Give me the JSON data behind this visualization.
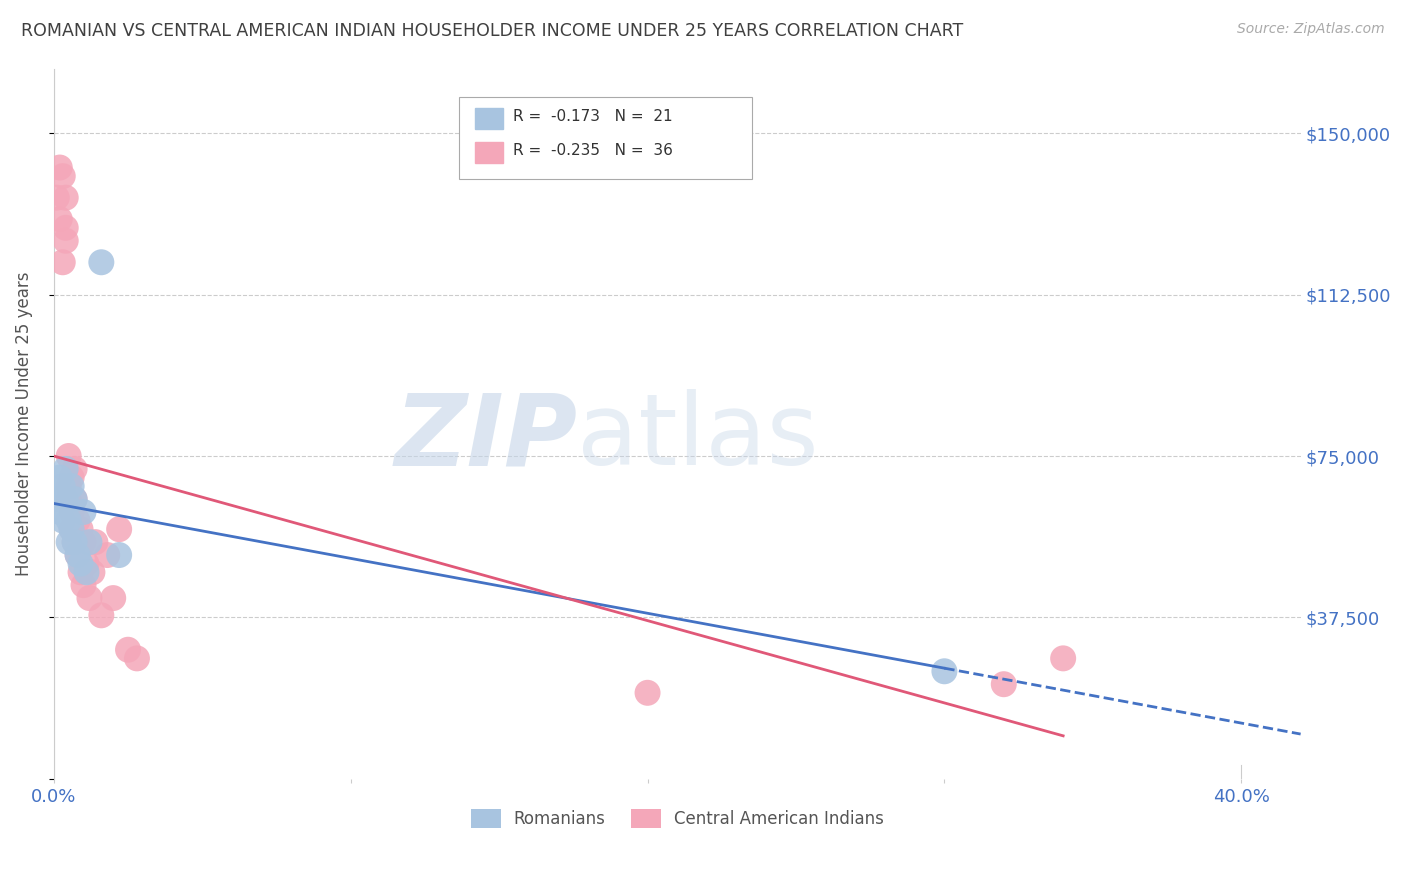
{
  "title": "ROMANIAN VS CENTRAL AMERICAN INDIAN HOUSEHOLDER INCOME UNDER 25 YEARS CORRELATION CHART",
  "source": "Source: ZipAtlas.com",
  "ylabel": "Householder Income Under 25 years",
  "xlim": [
    0.0,
    0.42
  ],
  "ylim": [
    0,
    165000
  ],
  "legend_r1": "R =  -0.173   N =  21",
  "legend_r2": "R =  -0.235   N =  36",
  "romanian_color": "#a8c4e0",
  "central_american_color": "#f4a7b9",
  "regression_romanian_color": "#4472c4",
  "regression_central_color": "#e05878",
  "background_color": "#ffffff",
  "grid_color": "#cccccc",
  "title_color": "#404040",
  "axis_label_color": "#4472c4",
  "romanian_x": [
    0.001,
    0.002,
    0.002,
    0.003,
    0.003,
    0.004,
    0.004,
    0.005,
    0.005,
    0.006,
    0.006,
    0.007,
    0.007,
    0.008,
    0.009,
    0.01,
    0.011,
    0.012,
    0.016,
    0.022,
    0.3
  ],
  "romanian_y": [
    65000,
    70000,
    62000,
    68000,
    60000,
    72000,
    65000,
    60000,
    55000,
    68000,
    58000,
    65000,
    55000,
    52000,
    50000,
    62000,
    48000,
    55000,
    120000,
    52000,
    25000
  ],
  "central_x": [
    0.001,
    0.002,
    0.002,
    0.003,
    0.003,
    0.004,
    0.004,
    0.004,
    0.005,
    0.005,
    0.005,
    0.006,
    0.006,
    0.006,
    0.007,
    0.007,
    0.007,
    0.008,
    0.008,
    0.009,
    0.009,
    0.01,
    0.01,
    0.011,
    0.012,
    0.013,
    0.014,
    0.016,
    0.018,
    0.02,
    0.022,
    0.025,
    0.028,
    0.32,
    0.34,
    0.2
  ],
  "central_y": [
    135000,
    142000,
    130000,
    120000,
    140000,
    128000,
    135000,
    125000,
    68000,
    75000,
    65000,
    62000,
    70000,
    58000,
    65000,
    55000,
    72000,
    60000,
    52000,
    58000,
    48000,
    55000,
    45000,
    50000,
    42000,
    48000,
    55000,
    38000,
    52000,
    42000,
    58000,
    30000,
    28000,
    22000,
    28000,
    20000
  ]
}
